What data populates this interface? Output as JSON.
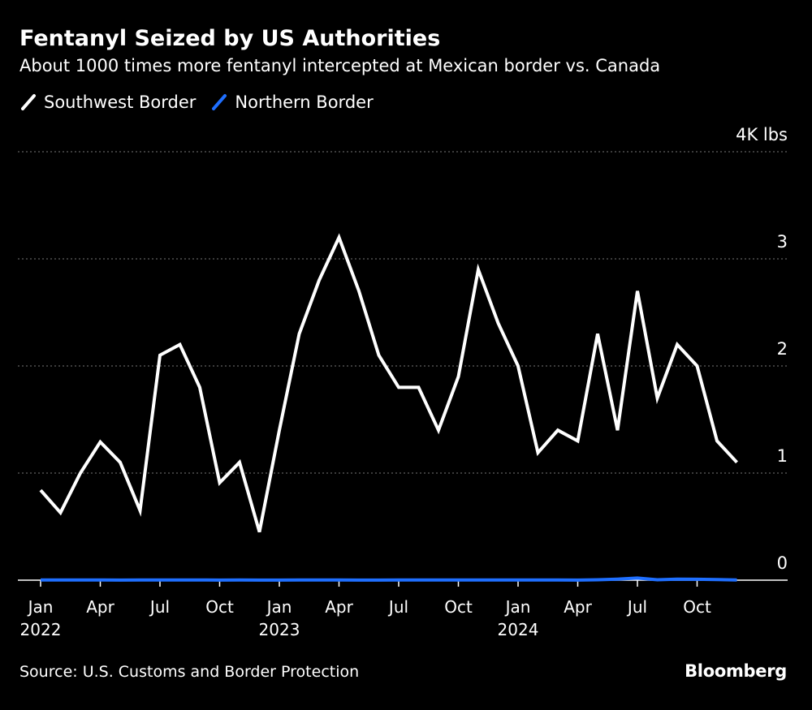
{
  "header": {
    "title": "Fentanyl Seized by US Authorities",
    "subtitle": "About 1000 times more fentanyl intercepted at Mexican border vs. Canada"
  },
  "footer": {
    "source": "Source: U.S. Customs and Border Protection",
    "brand": "Bloomberg"
  },
  "colors": {
    "background": "#000000",
    "southwest": "#ffffff",
    "northern": "#1f6fff",
    "grid": "#777777"
  },
  "chart_data": {
    "type": "line",
    "ylabel": "",
    "y_unit_label": "4K lbs",
    "ylim": [
      0,
      4
    ],
    "y_ticks": [
      {
        "value": 0,
        "label": "0"
      },
      {
        "value": 1,
        "label": "1"
      },
      {
        "value": 2,
        "label": "2"
      },
      {
        "value": 3,
        "label": "3"
      },
      {
        "value": 4,
        "label": "4K lbs"
      }
    ],
    "x_ticks": [
      {
        "index": 0,
        "label": "Jan",
        "year": "2022"
      },
      {
        "index": 3,
        "label": "Apr",
        "year": ""
      },
      {
        "index": 6,
        "label": "Jul",
        "year": ""
      },
      {
        "index": 9,
        "label": "Oct",
        "year": ""
      },
      {
        "index": 12,
        "label": "Jan",
        "year": "2023"
      },
      {
        "index": 15,
        "label": "Apr",
        "year": ""
      },
      {
        "index": 18,
        "label": "Jul",
        "year": ""
      },
      {
        "index": 21,
        "label": "Oct",
        "year": ""
      },
      {
        "index": 24,
        "label": "Jan",
        "year": "2024"
      },
      {
        "index": 27,
        "label": "Apr",
        "year": ""
      },
      {
        "index": 30,
        "label": "Jul",
        "year": ""
      },
      {
        "index": 33,
        "label": "Oct",
        "year": ""
      }
    ],
    "x": [
      "2022-01",
      "2022-02",
      "2022-03",
      "2022-04",
      "2022-05",
      "2022-06",
      "2022-07",
      "2022-08",
      "2022-09",
      "2022-10",
      "2022-11",
      "2022-12",
      "2023-01",
      "2023-02",
      "2023-03",
      "2023-04",
      "2023-05",
      "2023-06",
      "2023-07",
      "2023-08",
      "2023-09",
      "2023-10",
      "2023-11",
      "2023-12",
      "2024-01",
      "2024-02",
      "2024-03",
      "2024-04",
      "2024-05",
      "2024-06",
      "2024-07",
      "2024-08",
      "2024-09",
      "2024-10",
      "2024-11",
      "2024-12"
    ],
    "series": [
      {
        "name": "Southwest Border",
        "color": "#ffffff",
        "values": [
          0.84,
          0.63,
          1.0,
          1.29,
          1.1,
          0.65,
          2.1,
          2.2,
          1.8,
          0.91,
          1.1,
          0.45,
          1.4,
          2.3,
          2.8,
          3.2,
          2.7,
          2.1,
          1.8,
          1.8,
          1.4,
          1.9,
          2.9,
          2.4,
          2.0,
          1.19,
          1.4,
          1.3,
          2.3,
          1.4,
          2.7,
          1.7,
          2.2,
          2.0,
          1.3,
          1.1
        ]
      },
      {
        "name": "Northern Border",
        "color": "#1f6fff",
        "values": [
          0.002,
          0.002,
          0.002,
          0.002,
          0.001,
          0.002,
          0.002,
          0.002,
          0.002,
          0.001,
          0.002,
          0.001,
          0.001,
          0.002,
          0.002,
          0.002,
          0.001,
          0.001,
          0.002,
          0.002,
          0.002,
          0.002,
          0.002,
          0.002,
          0.002,
          0.002,
          0.002,
          0.001,
          0.004,
          0.01,
          0.02,
          0.004,
          0.01,
          0.008,
          0.006,
          0.002
        ]
      }
    ],
    "grid": true,
    "legend_position": "top-left"
  }
}
